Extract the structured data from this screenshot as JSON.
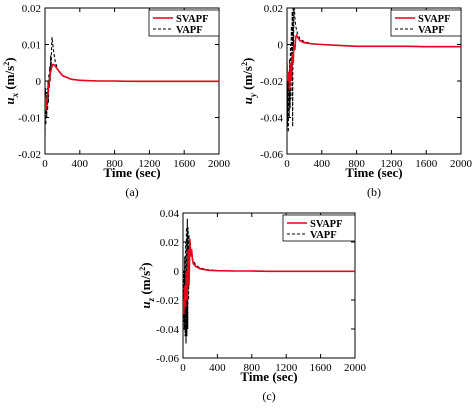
{
  "chart_data": [
    {
      "type": "line",
      "panel_caption": "(a)",
      "xlabel": "Time (sec)",
      "ylabel_main": "u",
      "ylabel_sub": "x",
      "ylabel_unit": "(m/s",
      "ylabel_unit_sup": "2",
      "ylabel_unit_close": ")",
      "xlim": [
        0,
        2000
      ],
      "ylim": [
        -0.02,
        0.02
      ],
      "xticks": [
        "0",
        "400",
        "800",
        "1200",
        "1600",
        "2000"
      ],
      "xtick_values": [
        0,
        400,
        800,
        1200,
        1600,
        2000
      ],
      "yticks": [
        "-0.02",
        "-0.01",
        "0",
        "0.01",
        "0.02"
      ],
      "ytick_values": [
        -0.02,
        -0.01,
        0,
        0.01,
        0.02
      ],
      "legend_position": "top-right",
      "series": [
        {
          "name": "SVAPF",
          "color": "#e8001c",
          "dash": "solid",
          "x": [
            0,
            10,
            20,
            30,
            40,
            50,
            60,
            70,
            80,
            90,
            100,
            120,
            150,
            200,
            300,
            400,
            600,
            800,
            1000,
            1200,
            1400,
            1600,
            1800,
            2000
          ],
          "y": [
            -0.004,
            -0.008,
            -0.006,
            -0.004,
            -0.002,
            0.0,
            0.002,
            0.003,
            0.004,
            0.0045,
            0.0045,
            0.004,
            0.003,
            0.0015,
            0.0005,
            0.0002,
            0.0,
            0.0,
            -0.0001,
            -0.0001,
            -0.0001,
            -0.0001,
            -0.0001,
            -0.0001
          ]
        },
        {
          "name": "VAPF",
          "color": "#000000",
          "dash": "dashed",
          "x": [
            0,
            5,
            10,
            15,
            20,
            25,
            30,
            35,
            40,
            45,
            50,
            55,
            60,
            65,
            70,
            75,
            80,
            90,
            100,
            120,
            150,
            200,
            300,
            400,
            600,
            800,
            1000,
            1200,
            1400,
            1600,
            1800,
            2000
          ],
          "y": [
            -0.015,
            -0.002,
            -0.012,
            -0.003,
            -0.01,
            -0.002,
            -0.008,
            0.0,
            -0.006,
            0.002,
            -0.002,
            0.004,
            0.0,
            0.007,
            0.003,
            0.009,
            0.012,
            0.01,
            0.008,
            0.005,
            0.003,
            0.0015,
            0.0005,
            0.0002,
            0.0,
            0.0,
            -0.0001,
            -0.0001,
            -0.0001,
            -0.0001,
            -0.0001,
            -0.0001
          ]
        }
      ]
    },
    {
      "type": "line",
      "panel_caption": "(b)",
      "xlabel": "Time (sec)",
      "ylabel_main": "u",
      "ylabel_sub": "y",
      "ylabel_unit": "(m/s",
      "ylabel_unit_sup": "2",
      "ylabel_unit_close": ")",
      "xlim": [
        0,
        2000
      ],
      "ylim": [
        -0.06,
        0.02
      ],
      "xticks": [
        "0",
        "400",
        "800",
        "1200",
        "1600",
        "2000"
      ],
      "xtick_values": [
        0,
        400,
        800,
        1200,
        1600,
        2000
      ],
      "yticks": [
        "-0.06",
        "-0.04",
        "-0.02",
        "0",
        "0.02"
      ],
      "ytick_values": [
        -0.06,
        -0.04,
        -0.02,
        0,
        0.02
      ],
      "legend_position": "top-right",
      "series": [
        {
          "name": "SVAPF",
          "color": "#e8001c",
          "dash": "solid",
          "x": [
            0,
            10,
            20,
            30,
            40,
            50,
            60,
            70,
            80,
            90,
            100,
            110,
            120,
            150,
            200,
            300,
            400,
            600,
            800,
            1000,
            1200,
            1400,
            1600,
            1800,
            2000
          ],
          "y": [
            -0.01,
            -0.02,
            -0.015,
            -0.025,
            -0.01,
            -0.02,
            -0.005,
            -0.01,
            0.0,
            -0.003,
            0.004,
            0.005,
            0.004,
            0.002,
            0.001,
            0.0003,
            0.0,
            -0.0005,
            -0.001,
            -0.001,
            -0.001,
            -0.001,
            -0.0012,
            -0.0012,
            -0.0012
          ]
        },
        {
          "name": "VAPF",
          "color": "#000000",
          "dash": "dashed",
          "x": [
            0,
            5,
            10,
            15,
            20,
            25,
            30,
            35,
            40,
            45,
            50,
            55,
            60,
            65,
            70,
            75,
            80,
            85,
            90,
            100,
            120,
            150,
            200,
            300,
            400,
            600,
            800,
            1000,
            1200,
            1400,
            1600,
            1800,
            2000
          ],
          "y": [
            -0.03,
            -0.045,
            -0.02,
            -0.048,
            -0.015,
            -0.04,
            -0.008,
            -0.035,
            0.0,
            -0.03,
            0.01,
            -0.02,
            0.018,
            -0.045,
            0.025,
            -0.01,
            0.03,
            0.02,
            0.015,
            0.01,
            0.006,
            0.003,
            0.0015,
            0.0003,
            0.0,
            -0.0005,
            -0.001,
            -0.001,
            -0.001,
            -0.001,
            -0.0012,
            -0.0012,
            -0.0012
          ]
        }
      ]
    },
    {
      "type": "line",
      "panel_caption": "(c)",
      "xlabel": "Time (sec)",
      "ylabel_main": "u",
      "ylabel_sub": "z",
      "ylabel_unit": "(m/s",
      "ylabel_unit_sup": "2",
      "ylabel_unit_close": ")",
      "xlim": [
        0,
        2000
      ],
      "ylim": [
        -0.06,
        0.04
      ],
      "xticks": [
        "0",
        "400",
        "800",
        "1200",
        "1600",
        "2000"
      ],
      "xtick_values": [
        0,
        400,
        800,
        1200,
        1600,
        2000
      ],
      "yticks": [
        "-0.06",
        "-0.04",
        "-0.02",
        "0",
        "0.02",
        "0.04"
      ],
      "ytick_values": [
        -0.06,
        -0.04,
        -0.02,
        0,
        0.02,
        0.04
      ],
      "legend_position": "top-right",
      "series": [
        {
          "name": "SVAPF",
          "color": "#e8001c",
          "dash": "solid",
          "x": [
            0,
            10,
            20,
            30,
            40,
            50,
            60,
            70,
            80,
            90,
            100,
            110,
            120,
            150,
            200,
            300,
            400,
            600,
            800,
            1000,
            1200,
            1400,
            1600,
            1800,
            2000
          ],
          "y": [
            -0.02,
            -0.03,
            -0.01,
            -0.025,
            0.0,
            -0.02,
            0.015,
            -0.01,
            0.022,
            0.01,
            0.015,
            0.008,
            0.005,
            0.003,
            0.0015,
            0.0005,
            0.0002,
            0.0,
            0.0,
            -0.0002,
            -0.0002,
            -0.0002,
            -0.0002,
            -0.0002,
            -0.0002
          ]
        },
        {
          "name": "VAPF",
          "color": "#000000",
          "dash": "dashed",
          "x": [
            0,
            5,
            10,
            15,
            20,
            25,
            30,
            35,
            40,
            45,
            50,
            55,
            60,
            65,
            70,
            75,
            80,
            90,
            100,
            120,
            150,
            200,
            300,
            400,
            600,
            800,
            1000,
            1200,
            1400,
            1600,
            1800,
            2000
          ],
          "y": [
            -0.01,
            -0.035,
            0.0,
            -0.04,
            0.01,
            -0.045,
            0.02,
            -0.05,
            0.03,
            -0.045,
            0.036,
            -0.04,
            0.03,
            -0.02,
            0.025,
            -0.005,
            0.02,
            0.015,
            0.01,
            0.007,
            0.004,
            0.002,
            0.0008,
            0.0003,
            0.0,
            0.0,
            -0.0002,
            -0.0002,
            -0.0002,
            -0.0002,
            -0.0002,
            -0.0002
          ]
        }
      ]
    }
  ]
}
